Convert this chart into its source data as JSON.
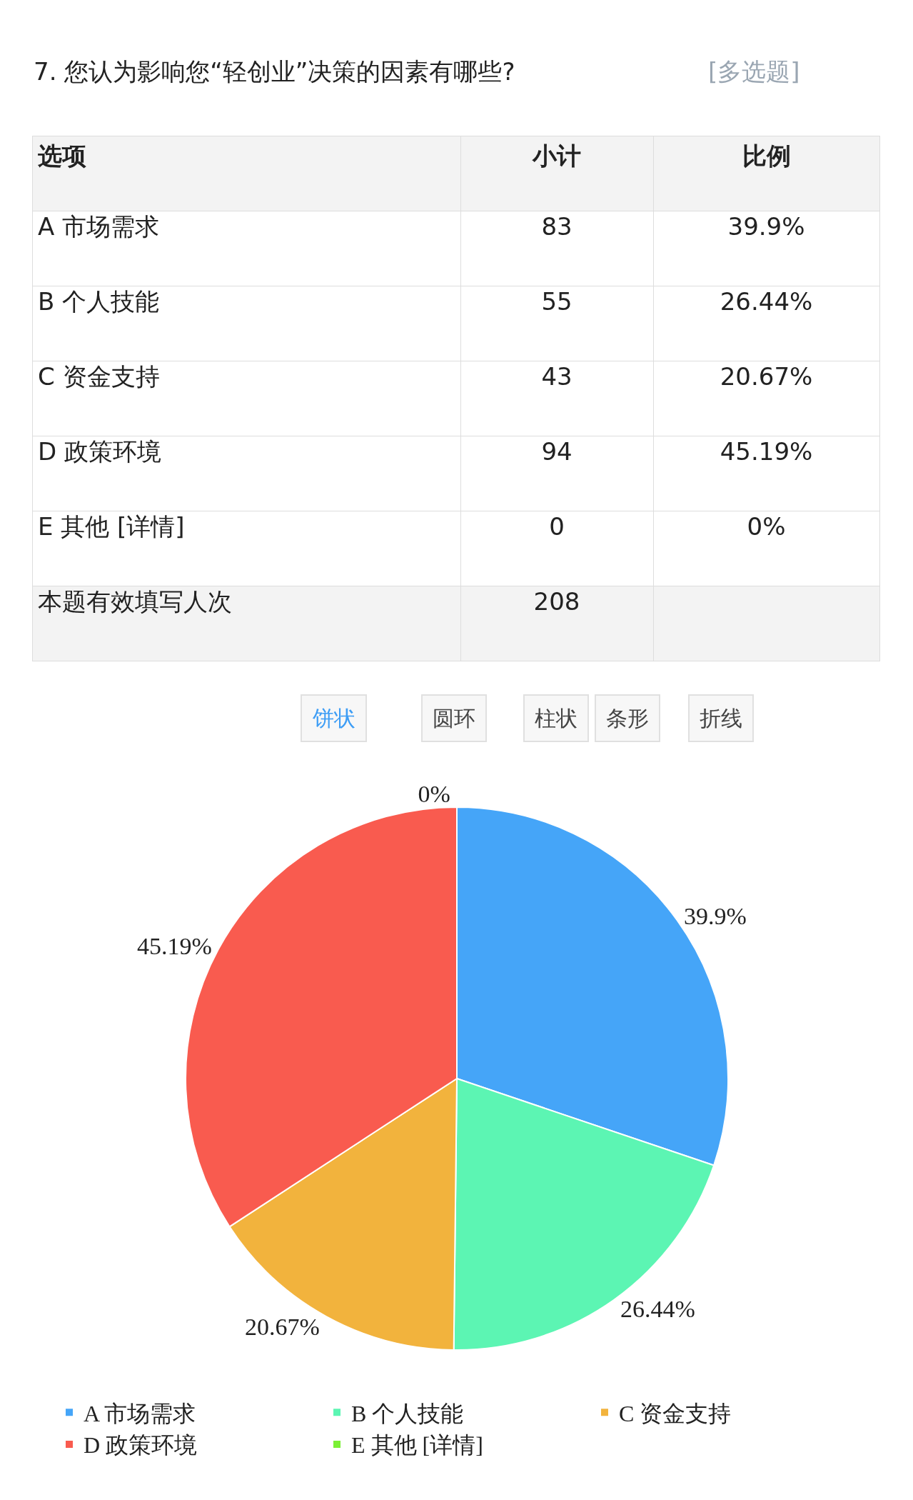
{
  "chart_data": [
    {
      "type": "other",
      "data_labels": true,
      "title": "7. 您认为影响您“轻创业”决策的因素有哪些?",
      "subtitle": "[多选题]",
      "xlabel": "选项",
      "categories": [
        "A 市场需求",
        "B 个人技能",
        "C 资金支持",
        "D 政策环境",
        "E 其他 [详情]"
      ],
      "series": [
        {
          "name": "小计",
          "values": [
            83,
            55,
            43,
            94,
            0
          ]
        },
        {
          "name": "比例",
          "values": [
            39.9,
            26.44,
            20.67,
            45.19,
            0
          ],
          "value_labels": [
            "39.9%",
            "26.44%",
            "20.67%",
            "45.19%",
            "0%"
          ]
        }
      ],
      "annotations": [
        "本题有效填写人次",
        "208",
        "饼状",
        "圆环",
        "柱状",
        "条形",
        "折线"
      ]
    },
    {
      "type": "pie",
      "categories": [
        "A 市场需求",
        "B 个人技能",
        "C 资金支持",
        "D 政策环境",
        "E 其他 [详情]"
      ],
      "values": [
        39.9,
        26.44,
        20.67,
        45.19,
        0
      ],
      "colors": [
        "#45a5f8",
        "#5cf5b3",
        "#f2b33d",
        "#f95b4f",
        "#7bf035"
      ],
      "value_labels": [
        "39.9%",
        "26.44%",
        "20.67%",
        "45.19%",
        "0%"
      ],
      "legend": "bottom"
    }
  ]
}
